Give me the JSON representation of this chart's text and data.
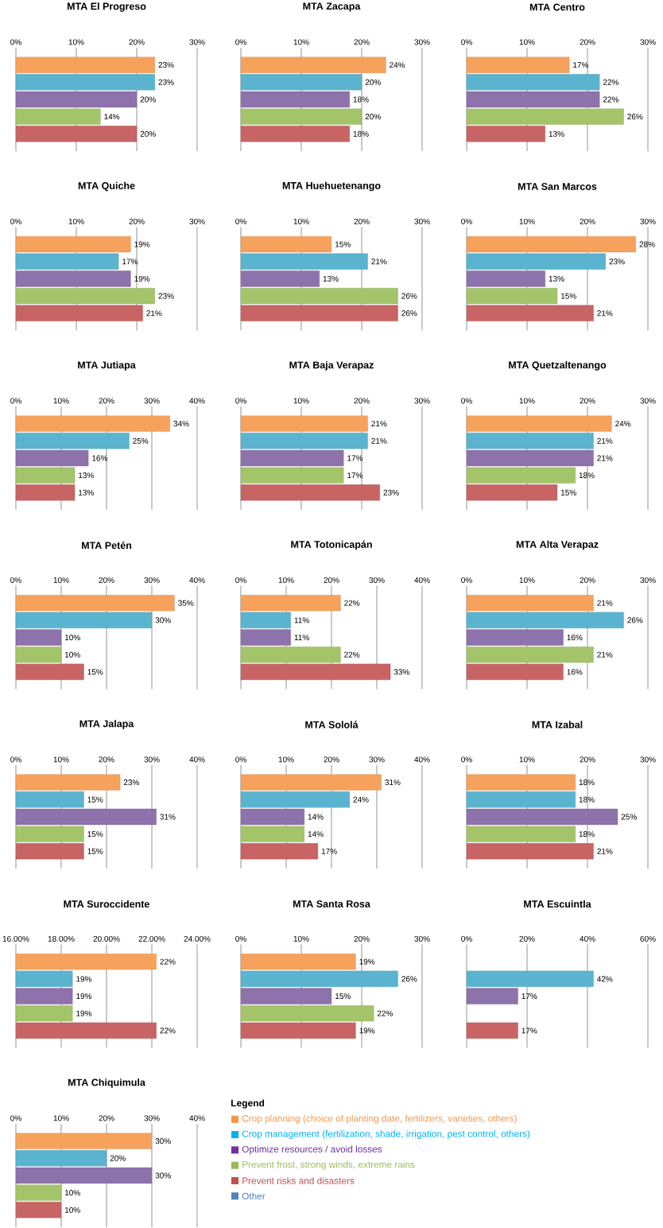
{
  "chart_data": [
    {
      "type": "bar",
      "orientation": "horizontal",
      "title": "MTA El Progreso",
      "categories": [
        null,
        null,
        null,
        null,
        null
      ],
      "values": [
        23,
        23,
        20,
        14,
        20
      ],
      "value_labels": [
        "23%",
        "23%",
        "20%",
        "14%",
        "20%"
      ],
      "colors": [
        "#f6a25c",
        "#5bb4cf",
        "#8e72ab",
        "#a4c46a",
        "#c86464"
      ],
      "xlim": [
        0,
        30
      ],
      "xticks": [
        {
          "value": 0,
          "label": "0%"
        },
        {
          "value": 10,
          "label": "10%"
        },
        {
          "value": 20,
          "label": "20%"
        },
        {
          "value": 30,
          "label": "30%"
        }
      ],
      "grid": "x"
    },
    {
      "type": "bar",
      "orientation": "horizontal",
      "title": "MTA Zacapa",
      "categories": [
        null,
        null,
        null,
        null,
        null
      ],
      "values": [
        24,
        20,
        18,
        20,
        18
      ],
      "value_labels": [
        "24%",
        "20%",
        "18%",
        "20%",
        "18%"
      ],
      "colors": [
        "#f6a25c",
        "#5bb4cf",
        "#8e72ab",
        "#a4c46a",
        "#c86464"
      ],
      "xlim": [
        0,
        30
      ],
      "xticks": [
        {
          "value": 0,
          "label": "0%"
        },
        {
          "value": 10,
          "label": "10%"
        },
        {
          "value": 20,
          "label": "20%"
        },
        {
          "value": 30,
          "label": "30%"
        }
      ],
      "grid": "x"
    },
    {
      "type": "bar",
      "orientation": "horizontal",
      "title": "MTA Centro",
      "categories": [
        null,
        null,
        null,
        null,
        null
      ],
      "values": [
        17,
        22,
        22,
        26,
        13
      ],
      "value_labels": [
        "17%",
        "22%",
        "22%",
        "26%",
        "13%"
      ],
      "colors": [
        "#f6a25c",
        "#5bb4cf",
        "#8e72ab",
        "#a4c46a",
        "#c86464"
      ],
      "xlim": [
        0,
        30
      ],
      "xticks": [
        {
          "value": 0,
          "label": "0%"
        },
        {
          "value": 10,
          "label": "10%"
        },
        {
          "value": 20,
          "label": "20%"
        },
        {
          "value": 30,
          "label": "30%"
        }
      ],
      "grid": "x"
    },
    {
      "type": "bar",
      "orientation": "horizontal",
      "title": "MTA Quiche",
      "categories": [
        null,
        null,
        null,
        null,
        null
      ],
      "values": [
        19,
        17,
        19,
        23,
        21
      ],
      "value_labels": [
        "19%",
        "17%",
        "19%",
        "23%",
        "21%"
      ],
      "colors": [
        "#f6a25c",
        "#5bb4cf",
        "#8e72ab",
        "#a4c46a",
        "#c86464"
      ],
      "xlim": [
        0,
        30
      ],
      "xticks": [
        {
          "value": 0,
          "label": "0%"
        },
        {
          "value": 10,
          "label": "10%"
        },
        {
          "value": 20,
          "label": "20%"
        },
        {
          "value": 30,
          "label": "30%"
        }
      ],
      "grid": "x"
    },
    {
      "type": "bar",
      "orientation": "horizontal",
      "title": "MTA Huehuetenango",
      "categories": [
        null,
        null,
        null,
        null,
        null
      ],
      "values": [
        15,
        21,
        13,
        26,
        26
      ],
      "value_labels": [
        "15%",
        "21%",
        "13%",
        "26%",
        "26%"
      ],
      "colors": [
        "#f6a25c",
        "#5bb4cf",
        "#8e72ab",
        "#a4c46a",
        "#c86464"
      ],
      "xlim": [
        0,
        30
      ],
      "xticks": [
        {
          "value": 0,
          "label": "0%"
        },
        {
          "value": 10,
          "label": "10%"
        },
        {
          "value": 20,
          "label": "20%"
        },
        {
          "value": 30,
          "label": "30%"
        }
      ],
      "grid": "x"
    },
    {
      "type": "bar",
      "orientation": "horizontal",
      "title": "MTA San Marcos",
      "categories": [
        null,
        null,
        null,
        null,
        null
      ],
      "values": [
        28,
        23,
        13,
        15,
        21
      ],
      "value_labels": [
        "28%",
        "23%",
        "13%",
        "15%",
        "21%"
      ],
      "colors": [
        "#f6a25c",
        "#5bb4cf",
        "#8e72ab",
        "#a4c46a",
        "#c86464"
      ],
      "xlim": [
        0,
        30
      ],
      "xticks": [
        {
          "value": 0,
          "label": "0%"
        },
        {
          "value": 10,
          "label": "10%"
        },
        {
          "value": 20,
          "label": "20%"
        },
        {
          "value": 30,
          "label": "30%"
        }
      ],
      "grid": "x"
    },
    {
      "type": "bar",
      "orientation": "horizontal",
      "title": "MTA Jutiapa",
      "categories": [
        null,
        null,
        null,
        null,
        null
      ],
      "values": [
        34,
        25,
        16,
        13,
        13
      ],
      "value_labels": [
        "34%",
        "25%",
        "16%",
        "13%",
        "13%"
      ],
      "colors": [
        "#f6a25c",
        "#5bb4cf",
        "#8e72ab",
        "#a4c46a",
        "#c86464"
      ],
      "xlim": [
        0,
        40
      ],
      "xticks": [
        {
          "value": 0,
          "label": "0%"
        },
        {
          "value": 10,
          "label": "10%"
        },
        {
          "value": 20,
          "label": "20%"
        },
        {
          "value": 30,
          "label": "30%"
        },
        {
          "value": 40,
          "label": "40%"
        }
      ],
      "grid": "x"
    },
    {
      "type": "bar",
      "orientation": "horizontal",
      "title": "MTA Baja Verapaz",
      "categories": [
        null,
        null,
        null,
        null,
        null
      ],
      "values": [
        21,
        21,
        17,
        17,
        23
      ],
      "value_labels": [
        "21%",
        "21%",
        "17%",
        "17%",
        "23%"
      ],
      "colors": [
        "#f6a25c",
        "#5bb4cf",
        "#8e72ab",
        "#a4c46a",
        "#c86464"
      ],
      "xlim": [
        0,
        30
      ],
      "xticks": [
        {
          "value": 0,
          "label": "0%"
        },
        {
          "value": 10,
          "label": "10%"
        },
        {
          "value": 20,
          "label": "20%"
        },
        {
          "value": 30,
          "label": "30%"
        }
      ],
      "grid": "x"
    },
    {
      "type": "bar",
      "orientation": "horizontal",
      "title": "MTA Quetzaltenango",
      "categories": [
        null,
        null,
        null,
        null,
        null
      ],
      "values": [
        24,
        21,
        21,
        18,
        15
      ],
      "value_labels": [
        "24%",
        "21%",
        "21%",
        "18%",
        "15%"
      ],
      "colors": [
        "#f6a25c",
        "#5bb4cf",
        "#8e72ab",
        "#a4c46a",
        "#c86464"
      ],
      "xlim": [
        0,
        30
      ],
      "xticks": [
        {
          "value": 0,
          "label": "0%"
        },
        {
          "value": 10,
          "label": "10%"
        },
        {
          "value": 20,
          "label": "20%"
        },
        {
          "value": 30,
          "label": "30%"
        }
      ],
      "grid": "x"
    },
    {
      "type": "bar",
      "orientation": "horizontal",
      "title": "MTA Petén",
      "categories": [
        null,
        null,
        null,
        null,
        null
      ],
      "values": [
        35,
        30,
        10,
        10,
        15
      ],
      "value_labels": [
        "35%",
        "30%",
        "10%",
        "10%",
        "15%"
      ],
      "colors": [
        "#f6a25c",
        "#5bb4cf",
        "#8e72ab",
        "#a4c46a",
        "#c86464"
      ],
      "xlim": [
        0,
        40
      ],
      "xticks": [
        {
          "value": 0,
          "label": "0%"
        },
        {
          "value": 10,
          "label": "10%"
        },
        {
          "value": 20,
          "label": "20%"
        },
        {
          "value": 30,
          "label": "30%"
        },
        {
          "value": 40,
          "label": "40%"
        }
      ],
      "grid": "x"
    },
    {
      "type": "bar",
      "orientation": "horizontal",
      "title": "MTA Totonicapán",
      "categories": [
        null,
        null,
        null,
        null,
        null
      ],
      "values": [
        22,
        11,
        11,
        22,
        33
      ],
      "value_labels": [
        "22%",
        "11%",
        "11%",
        "22%",
        "33%"
      ],
      "colors": [
        "#f6a25c",
        "#5bb4cf",
        "#8e72ab",
        "#a4c46a",
        "#c86464"
      ],
      "xlim": [
        0,
        40
      ],
      "xticks": [
        {
          "value": 0,
          "label": "0%"
        },
        {
          "value": 10,
          "label": "10%"
        },
        {
          "value": 20,
          "label": "20%"
        },
        {
          "value": 30,
          "label": "30%"
        },
        {
          "value": 40,
          "label": "40%"
        }
      ],
      "grid": "x"
    },
    {
      "type": "bar",
      "orientation": "horizontal",
      "title": "MTA Alta Verapaz",
      "categories": [
        null,
        null,
        null,
        null,
        null
      ],
      "values": [
        21,
        26,
        16,
        21,
        16
      ],
      "value_labels": [
        "21%",
        "26%",
        "16%",
        "21%",
        "16%"
      ],
      "colors": [
        "#f6a25c",
        "#5bb4cf",
        "#8e72ab",
        "#a4c46a",
        "#c86464"
      ],
      "xlim": [
        0,
        30
      ],
      "xticks": [
        {
          "value": 0,
          "label": "0%"
        },
        {
          "value": 10,
          "label": "10%"
        },
        {
          "value": 20,
          "label": "20%"
        },
        {
          "value": 30,
          "label": "30%"
        }
      ],
      "grid": "x"
    },
    {
      "type": "bar",
      "orientation": "horizontal",
      "title": "MTA Jalapa",
      "categories": [
        null,
        null,
        null,
        null,
        null
      ],
      "values": [
        23,
        15,
        31,
        15,
        15
      ],
      "value_labels": [
        "23%",
        "15%",
        "31%",
        "15%",
        "15%"
      ],
      "colors": [
        "#f6a25c",
        "#5bb4cf",
        "#8e72ab",
        "#a4c46a",
        "#c86464"
      ],
      "xlim": [
        0,
        40
      ],
      "xticks": [
        {
          "value": 0,
          "label": "0%"
        },
        {
          "value": 10,
          "label": "10%"
        },
        {
          "value": 20,
          "label": "20%"
        },
        {
          "value": 30,
          "label": "30%"
        },
        {
          "value": 40,
          "label": "40%"
        }
      ],
      "grid": "x"
    },
    {
      "type": "bar",
      "orientation": "horizontal",
      "title": "MTA Sololá",
      "categories": [
        null,
        null,
        null,
        null,
        null
      ],
      "values": [
        31,
        24,
        14,
        14,
        17
      ],
      "value_labels": [
        "31%",
        "24%",
        "14%",
        "14%",
        "17%"
      ],
      "colors": [
        "#f6a25c",
        "#5bb4cf",
        "#8e72ab",
        "#a4c46a",
        "#c86464"
      ],
      "xlim": [
        0,
        40
      ],
      "xticks": [
        {
          "value": 0,
          "label": "0%"
        },
        {
          "value": 10,
          "label": "10%"
        },
        {
          "value": 20,
          "label": "20%"
        },
        {
          "value": 30,
          "label": "30%"
        },
        {
          "value": 40,
          "label": "40%"
        }
      ],
      "grid": "x"
    },
    {
      "type": "bar",
      "orientation": "horizontal",
      "title": "MTA Izabal",
      "categories": [
        null,
        null,
        null,
        null,
        null
      ],
      "values": [
        18,
        18,
        25,
        18,
        21
      ],
      "value_labels": [
        "18%",
        "18%",
        "25%",
        "18%",
        "21%"
      ],
      "colors": [
        "#f6a25c",
        "#5bb4cf",
        "#8e72ab",
        "#a4c46a",
        "#c86464"
      ],
      "xlim": [
        0,
        30
      ],
      "xticks": [
        {
          "value": 0,
          "label": "0%"
        },
        {
          "value": 10,
          "label": "10%"
        },
        {
          "value": 20,
          "label": "20%"
        },
        {
          "value": 30,
          "label": "30%"
        }
      ],
      "grid": "x"
    },
    {
      "type": "bar",
      "orientation": "horizontal",
      "title": "MTA Suroccidente",
      "categories": [
        null,
        null,
        null,
        null,
        null
      ],
      "values": [
        22.2,
        18.5,
        18.5,
        18.5,
        22.2
      ],
      "value_labels": [
        "22%",
        "19%",
        "19%",
        "19%",
        "22%"
      ],
      "colors": [
        "#f6a25c",
        "#5bb4cf",
        "#8e72ab",
        "#a4c46a",
        "#c86464"
      ],
      "xlim": [
        16,
        24
      ],
      "xticks": [
        {
          "value": 16,
          "label": "16.00%"
        },
        {
          "value": 18,
          "label": "18.00%"
        },
        {
          "value": 20,
          "label": "20.00%"
        },
        {
          "value": 22,
          "label": "22.00%"
        },
        {
          "value": 24,
          "label": "24.00%"
        }
      ],
      "grid": "x"
    },
    {
      "type": "bar",
      "orientation": "horizontal",
      "title": "MTA Santa Rosa",
      "categories": [
        null,
        null,
        null,
        null,
        null
      ],
      "values": [
        19,
        26,
        15,
        22,
        19
      ],
      "value_labels": [
        "19%",
        "26%",
        "15%",
        "22%",
        "19%"
      ],
      "colors": [
        "#f6a25c",
        "#5bb4cf",
        "#8e72ab",
        "#a4c46a",
        "#c86464"
      ],
      "xlim": [
        0,
        30
      ],
      "xticks": [
        {
          "value": 0,
          "label": "0%"
        },
        {
          "value": 10,
          "label": "10%"
        },
        {
          "value": 20,
          "label": "20%"
        },
        {
          "value": 30,
          "label": "30%"
        }
      ],
      "grid": "x"
    },
    {
      "type": "bar",
      "orientation": "horizontal",
      "title": "MTA Escuintla",
      "categories": [
        null,
        null,
        null,
        null,
        null
      ],
      "values": [
        null,
        42,
        17,
        null,
        17
      ],
      "value_labels": [
        null,
        "42%",
        "17%",
        null,
        "17%"
      ],
      "colors": [
        "#f6a25c",
        "#5bb4cf",
        "#8e72ab",
        "#a4c46a",
        "#c86464"
      ],
      "xlim": [
        0,
        60
      ],
      "xticks": [
        {
          "value": 0,
          "label": "0%"
        },
        {
          "value": 20,
          "label": "20%"
        },
        {
          "value": 40,
          "label": "40%"
        },
        {
          "value": 60,
          "label": "60%"
        }
      ],
      "grid": "x"
    },
    {
      "type": "bar",
      "orientation": "horizontal",
      "title": "MTA Chiquimula",
      "categories": [
        null,
        null,
        null,
        null,
        null
      ],
      "values": [
        30,
        20,
        30,
        10,
        10
      ],
      "value_labels": [
        "30%",
        "20%",
        "30%",
        "10%",
        "10%"
      ],
      "colors": [
        "#f6a25c",
        "#5bb4cf",
        "#8e72ab",
        "#a4c46a",
        "#c86464"
      ],
      "xlim": [
        0,
        40
      ],
      "xticks": [
        {
          "value": 0,
          "label": "0%"
        },
        {
          "value": 10,
          "label": "10%"
        },
        {
          "value": 20,
          "label": "20%"
        },
        {
          "value": 30,
          "label": "30%"
        },
        {
          "value": 40,
          "label": "40%"
        }
      ],
      "grid": "x"
    },
    {
      "type": "other",
      "title": "Legend",
      "categories": [
        "Crop planning (choice of planting date, fertilizers, varieties, others)",
        "Crop management (fertilization, shade, irrigation, pest control, others)",
        "Optimize resources / avoid losses",
        "Prevent frost, strong winds, extreme rains",
        "Prevent risks and disasters",
        "Other"
      ],
      "colors": [
        "#f79646",
        "#00b0f0",
        "#7030a0",
        "#9bbb59",
        "#c0504d",
        "#4f81bd"
      ]
    }
  ]
}
